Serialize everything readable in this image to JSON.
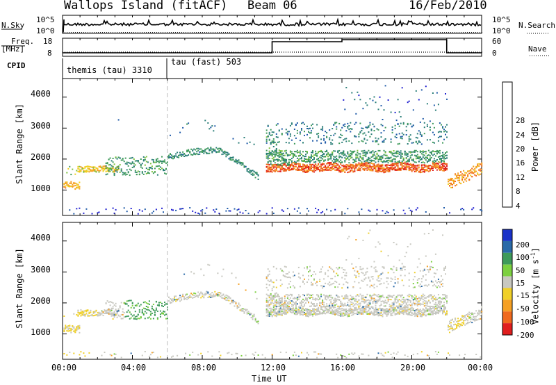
{
  "header": {
    "station": "Wallops Island (fitACF)",
    "beam": "Beam 06",
    "date": "16/Feb/2010"
  },
  "left_labels": {
    "nsky": "N.Sky",
    "freq": "Freq.",
    "freq_unit": "[MHz]",
    "cpid": "CPID"
  },
  "right_labels": {
    "nsearch": "N.Search",
    "nave": "Nave"
  },
  "cpid_segments": [
    {
      "label": "themis (tau) 3310",
      "start": "00:00",
      "end": "06:00"
    },
    {
      "label": "tau (fast) 503",
      "start": "06:00",
      "end": "24:00"
    }
  ],
  "noise_axis": {
    "left_ticks": [
      "10^5",
      "10^0"
    ],
    "right_ticks": [
      "10^5",
      "10^0"
    ]
  },
  "freq_axis": {
    "left_ticks": [
      "18",
      "8"
    ],
    "right_ticks": [
      "60",
      "0"
    ]
  },
  "nave_steps": [
    {
      "from": 0,
      "to": 12,
      "value": 10
    },
    {
      "from": 12,
      "to": 16,
      "value": 50
    },
    {
      "from": 16,
      "to": 22,
      "value": 57
    },
    {
      "from": 22,
      "to": 24,
      "value": 10
    }
  ],
  "chart_data": [
    {
      "type": "heatmap",
      "quantity": "power",
      "ylabel": "Slant Range [km]",
      "yticks": [
        1000,
        2000,
        3000,
        4000
      ],
      "ylim": [
        180,
        4600
      ],
      "colorbar": {
        "label": "Power [dB]",
        "ticks": [
          "4",
          "8",
          "12",
          "16",
          "20",
          "24",
          "28"
        ],
        "colors": [
          "#2020d0",
          "#1e5aa8",
          "#2a7e78",
          "#3e9a5a",
          "#7cc23c",
          "#f0d020",
          "#f5a024",
          "#f06a1e",
          "#e01e1e"
        ]
      }
    },
    {
      "type": "heatmap",
      "quantity": "velocity",
      "ylabel": "Slant Range [km]",
      "yticks": [
        1000,
        2000,
        3000,
        4000
      ],
      "ylim": [
        180,
        4600
      ],
      "colorbar": {
        "label": "Velocity [m s",
        "label_sup": "-1",
        "label_end": "]",
        "ticks": [
          "200",
          "100",
          "50",
          "15",
          "-15",
          "-50",
          "-100",
          "-200"
        ],
        "colors": [
          "#1a32c8",
          "#2a6aa8",
          "#3e9a5a",
          "#7cd040",
          "#c8c8c0",
          "#f0d028",
          "#f5a024",
          "#f06a1e",
          "#e01e1e"
        ]
      }
    }
  ],
  "time_axis": {
    "label": "Time UT",
    "ticks": [
      "00:00",
      "04:00",
      "08:00",
      "12:00",
      "16:00",
      "20:00",
      "00:00"
    ],
    "range_hours": [
      0,
      24
    ]
  }
}
